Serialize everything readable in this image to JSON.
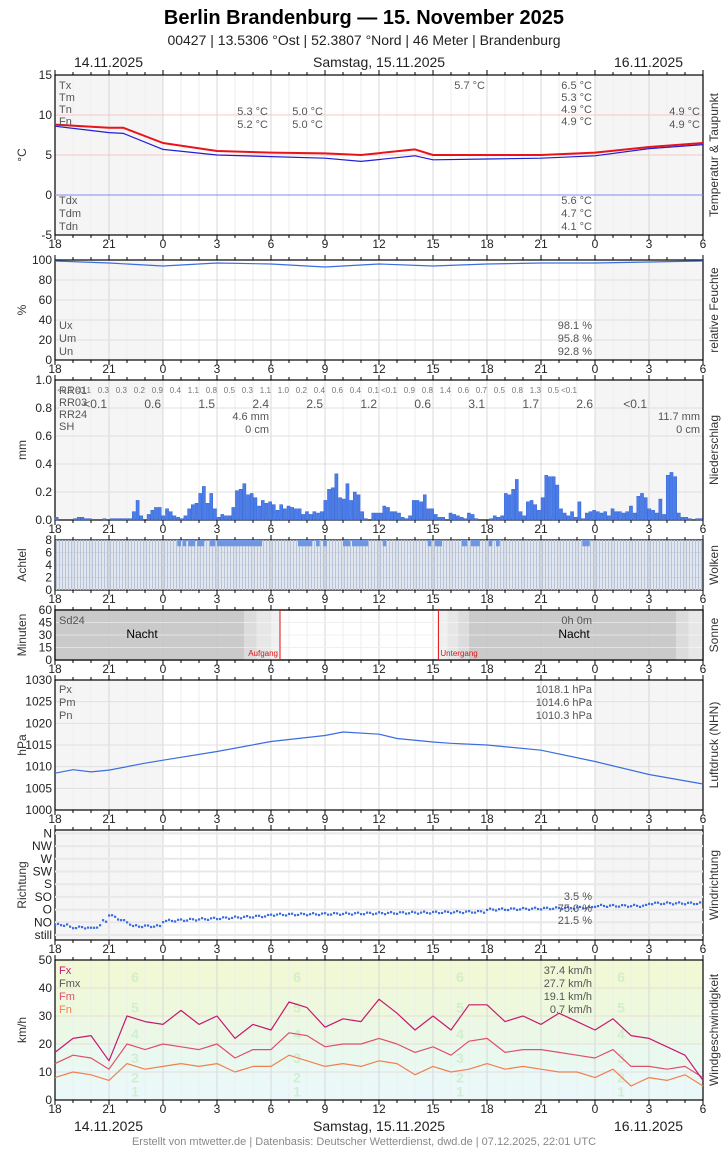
{
  "header": {
    "title": "Berlin Brandenburg  —  15. November 2025",
    "subtitle": "00427  |  13.5306 °Ost  |  52.3807 °Nord  |  46 Meter  |  Brandenburg",
    "date_left": "14.11.2025",
    "date_center": "Samstag, 15.11.2025",
    "date_right": "16.11.2025"
  },
  "footer": {
    "text": "Erstellt von mtwetter.de | Datenbasis: Deutscher Wetterdienst, dwd.de | 07.12.2025, 22:01 UTC"
  },
  "colors": {
    "temp": "#e8141a",
    "dew": "#1f1fd6",
    "line_blue": "#3b6de0",
    "bar_blue": "#4a7de8",
    "wind_fx": "#c8186e",
    "wind_fm": "#e0506a",
    "wind_fn": "#f08050",
    "sunrise": "#e01010"
  },
  "chart_data": [
    {
      "type": "line",
      "title": "Temperatur & Taupunkt",
      "ylabel": "°C",
      "ylim": [
        -5,
        15
      ],
      "yticks": [
        -5,
        0,
        5,
        10,
        15
      ],
      "x_ticks": [
        "18",
        "21",
        "0",
        "3",
        "6",
        "9",
        "12",
        "15",
        "18",
        "21",
        "0",
        "3",
        "6"
      ],
      "series": [
        {
          "name": "Temperatur",
          "x_hours": [
            0,
            3,
            3.8,
            6,
            9,
            12,
            15,
            17,
            20,
            21,
            24,
            27,
            30,
            33,
            36
          ],
          "values": [
            8.8,
            8.4,
            8.4,
            6.5,
            5.5,
            5.3,
            5.2,
            5.0,
            5.7,
            5.0,
            5.0,
            5.0,
            5.3,
            6.0,
            6.5
          ]
        },
        {
          "name": "Taupunkt",
          "x_hours": [
            0,
            3,
            3.8,
            6,
            9,
            12,
            15,
            17,
            20,
            21,
            24,
            27,
            30,
            33,
            36
          ],
          "values": [
            8.6,
            7.8,
            7.7,
            5.7,
            5.0,
            4.8,
            4.6,
            4.2,
            4.9,
            4.4,
            4.5,
            4.6,
            4.9,
            5.8,
            6.3
          ]
        }
      ],
      "stats": {
        "labels": [
          "Tx",
          "Tm",
          "Tn",
          "Fn"
        ],
        "day1": [
          "5.3 °C",
          "5.2 °C"
        ],
        "day1b": [
          "5.0 °C",
          "5.0 °C"
        ],
        "max_mark": "5.7 °C",
        "day2": [
          "6.5 °C",
          "5.3 °C",
          "4.9 °C",
          "4.9 °C"
        ],
        "day3": [
          "4.9 °C",
          "4.9 °C"
        ],
        "dew_labels": [
          "Tdx",
          "Tdm",
          "Tdn"
        ],
        "dew_values": [
          "5.6 °C",
          "4.7 °C",
          "4.1 °C"
        ]
      }
    },
    {
      "type": "line",
      "title": "relative Feuchte",
      "ylabel": "%",
      "ylim": [
        0,
        100
      ],
      "yticks": [
        0,
        20,
        40,
        60,
        80,
        100
      ],
      "series": [
        {
          "name": "Feuchte",
          "x_hours": [
            0,
            3,
            6,
            9,
            12,
            15,
            18,
            21,
            24,
            27,
            30,
            33,
            36
          ],
          "values": [
            99,
            97,
            94,
            97,
            96,
            93,
            96,
            94,
            96,
            97,
            97,
            98,
            99
          ]
        }
      ],
      "stats": {
        "labels": [
          "Ux",
          "Um",
          "Un"
        ],
        "values": [
          "98.1 %",
          "95.8 %",
          "92.8 %"
        ]
      }
    },
    {
      "type": "bar",
      "title": "Niederschlag",
      "ylabel": "mm",
      "ylim": [
        0,
        1.0
      ],
      "yticks": [
        "0.0",
        "0.2",
        "0.4",
        "0.6",
        "0.8",
        "1.0"
      ],
      "rr01": [
        "<0.1",
        "<0.1",
        "0.3",
        "0.3",
        "0.2",
        "0.9",
        "0.4",
        "1.1",
        "0.8",
        "0.5",
        "0.3",
        "1.1",
        "1.0",
        "0.2",
        "0.4",
        "0.6",
        "0.4",
        "0.1",
        "<0.1",
        "0.9",
        "0.8",
        "1.4",
        "0.6",
        "0.7",
        "0.5",
        "0.8",
        "1.3",
        "0.5",
        "<0.1"
      ],
      "rr03": [
        "<0.1",
        "0.6",
        "1.5",
        "2.4",
        "2.5",
        "1.2",
        "0.6",
        "3.1",
        "1.7",
        "2.6",
        "<0.1"
      ],
      "labels": [
        "RR01",
        "RR03",
        "RR24",
        "SH"
      ],
      "rr24_day": "4.6 mm",
      "sh_day": "0 cm",
      "rr24_day2": "11.7 mm",
      "sh_day2": "0 cm",
      "values": [
        0.02,
        0,
        0,
        0,
        0,
        0.01,
        0.02,
        0.02,
        0.01,
        0.01,
        0,
        0,
        0,
        0.01,
        0,
        0.01,
        0.01,
        0.01,
        0.01,
        0.01,
        0.01,
        0.06,
        0.14,
        0.03,
        0,
        0.04,
        0.07,
        0.09,
        0.09,
        0.03,
        0.08,
        0.06,
        0.03,
        0.02,
        0.01,
        0.03,
        0.08,
        0.11,
        0.12,
        0.19,
        0.24,
        0.12,
        0.19,
        0.08,
        0.02,
        0.04,
        0.03,
        0.03,
        0.09,
        0.21,
        0.22,
        0.26,
        0.18,
        0.19,
        0.16,
        0.1,
        0.14,
        0.12,
        0.13,
        0.11,
        0.07,
        0.11,
        0.08,
        0.1,
        0.09,
        0.08,
        0.08,
        0.04,
        0.06,
        0.04,
        0.06,
        0.05,
        0.06,
        0.14,
        0.22,
        0.23,
        0.33,
        0.16,
        0.15,
        0.26,
        0.14,
        0.2,
        0.18,
        0.06,
        0.01,
        0,
        0.05,
        0.05,
        0.05,
        0.1,
        0.09,
        0.06,
        0.06,
        0.05,
        0.02,
        0.01,
        0.03,
        0.14,
        0.14,
        0.13,
        0.18,
        0.08,
        0.08,
        0.04,
        0.02,
        0.02,
        0,
        0.05,
        0.04,
        0.03,
        0.02,
        0.01,
        0.05,
        0.04,
        0.01,
        0,
        0,
        0,
        0.01,
        0.03,
        0.02,
        0.03,
        0.19,
        0.18,
        0.22,
        0.29,
        0.06,
        0.03,
        0.13,
        0.14,
        0.11,
        0.07,
        0.16,
        0.32,
        0.31,
        0.31,
        0.25,
        0.08,
        0.05,
        0.03,
        0.06,
        0.02,
        0.13,
        0.01,
        0.05,
        0.06,
        0.07,
        0.06,
        0.05,
        0.06,
        0.03,
        0.08,
        0.06,
        0.06,
        0.05,
        0.06,
        0.1,
        0.05,
        0.17,
        0.19,
        0.16,
        0.08,
        0.07,
        0.05,
        0.15,
        0.04,
        0.32,
        0.34,
        0.31,
        0.05,
        0.02,
        0.02,
        0.01,
        0,
        0.01,
        0.01
      ]
    },
    {
      "type": "bar",
      "title": "Wolken",
      "ylabel": "Achtel",
      "ylim": [
        0,
        8
      ],
      "yticks": [
        0,
        2,
        4,
        6,
        8
      ],
      "note": "Mostly 8/8 (overcast, grey bars); blue segments where cloud 7/8"
    },
    {
      "type": "area",
      "title": "Sonne",
      "ylabel": "Minuten",
      "ylim": [
        0,
        60
      ],
      "yticks": [
        0,
        15,
        30,
        45,
        60
      ],
      "labels": {
        "sd24": "Sd24",
        "night": "Nacht",
        "sunrise": "Aufgang",
        "sunset": "Untergang",
        "duration": "0h 0m"
      },
      "sunrise_hour": 12.5,
      "sunset_hour": 21.3
    },
    {
      "type": "line",
      "title": "Luftdruck (NHN)",
      "ylabel": "hPa",
      "ylim": [
        1000,
        1030
      ],
      "yticks": [
        1000,
        1005,
        1010,
        1015,
        1020,
        1025,
        1030
      ],
      "series": [
        {
          "name": "Luftdruck",
          "x_hours": [
            0,
            1,
            2,
            3,
            5,
            6,
            9,
            12,
            15,
            16,
            18,
            19,
            21,
            22,
            24,
            27,
            30,
            33,
            36
          ],
          "values": [
            1008.5,
            1009.3,
            1008.8,
            1009.2,
            1010.8,
            1011.5,
            1013.5,
            1015.8,
            1017.2,
            1018.0,
            1017.5,
            1016.5,
            1015.7,
            1015.4,
            1015.0,
            1013.8,
            1011.2,
            1008.2,
            1006.0
          ]
        }
      ],
      "stats": {
        "labels": [
          "Px",
          "Pm",
          "Pn"
        ],
        "values": [
          "1018.1 hPa",
          "1014.6 hPa",
          "1010.3 hPa"
        ]
      }
    },
    {
      "type": "scatter",
      "title": "Windrichtung",
      "ylabel": "Richtung",
      "yticks": [
        "still",
        "NO",
        "O",
        "SO",
        "S",
        "SW",
        "W",
        "NW",
        "N"
      ],
      "stats": {
        "values": [
          "3.5 %",
          "75.0 %",
          "21.5 %"
        ]
      }
    },
    {
      "type": "line",
      "title": "Windgeschwindigkeit",
      "ylabel": "km/h",
      "ylim": [
        0,
        50
      ],
      "yticks": [
        0,
        10,
        20,
        30,
        40,
        50
      ],
      "beaufort_labels": [
        "1",
        "2",
        "3",
        "4",
        "5",
        "6"
      ],
      "legend": [
        "Fx",
        "Fmx",
        "Fm",
        "Fn"
      ],
      "stats": {
        "values": [
          "37.4 km/h",
          "27.7 km/h",
          "19.1 km/h",
          "0.7 km/h"
        ]
      },
      "series": [
        {
          "name": "Fx",
          "x_hours": [
            0,
            1,
            2,
            3,
            4,
            5,
            6,
            7,
            8,
            9,
            10,
            11,
            12,
            13,
            14,
            15,
            16,
            17,
            18,
            19,
            20,
            21,
            22,
            23,
            24,
            25,
            26,
            27,
            28,
            29,
            30,
            31,
            32,
            33,
            34,
            35,
            36
          ],
          "values": [
            17,
            22,
            23,
            14,
            30,
            28,
            27,
            32,
            27,
            30,
            22,
            27,
            25,
            35,
            33,
            26,
            29,
            28,
            36,
            31,
            25,
            30,
            25,
            34,
            34,
            28,
            30,
            27,
            31,
            28,
            25,
            29,
            23,
            22,
            19,
            16,
            7
          ]
        },
        {
          "name": "Fm",
          "x_hours": [
            0,
            1,
            2,
            3,
            4,
            5,
            6,
            7,
            8,
            9,
            10,
            11,
            12,
            13,
            14,
            15,
            16,
            17,
            18,
            19,
            20,
            21,
            22,
            23,
            24,
            25,
            26,
            27,
            28,
            29,
            30,
            31,
            32,
            33,
            34,
            35,
            36
          ],
          "values": [
            13,
            16,
            15,
            11,
            20,
            18,
            20,
            19,
            18,
            20,
            15,
            18,
            18,
            24,
            23,
            19,
            20,
            20,
            22,
            20,
            17,
            19,
            16,
            21,
            22,
            17,
            18,
            18,
            17,
            16,
            15,
            18,
            12,
            12,
            11,
            12,
            8
          ]
        },
        {
          "name": "Fn",
          "x_hours": [
            0,
            1,
            2,
            3,
            4,
            5,
            6,
            7,
            8,
            9,
            10,
            11,
            12,
            13,
            14,
            15,
            16,
            17,
            18,
            19,
            20,
            21,
            22,
            23,
            24,
            25,
            26,
            27,
            28,
            29,
            30,
            31,
            32,
            33,
            34,
            35,
            36
          ],
          "values": [
            8,
            10,
            9,
            7,
            13,
            11,
            12,
            13,
            12,
            13,
            10,
            12,
            12,
            16,
            14,
            12,
            13,
            12,
            14,
            13,
            9,
            12,
            10,
            11,
            13,
            11,
            12,
            11,
            10,
            10,
            8,
            11,
            5,
            8,
            7,
            9,
            5
          ]
        }
      ]
    }
  ],
  "panels": {
    "temp_side": "Temperatur & Taupunkt",
    "hum_side": "relative Feuchte",
    "rain_side": "Niederschlag",
    "cloud_side": "Wolken",
    "sun_side": "Sonne",
    "press_side": "Luftdruck (NHN)",
    "wdir_side": "Windrichtung",
    "wspd_side": "Windgeschwindigkeit"
  }
}
